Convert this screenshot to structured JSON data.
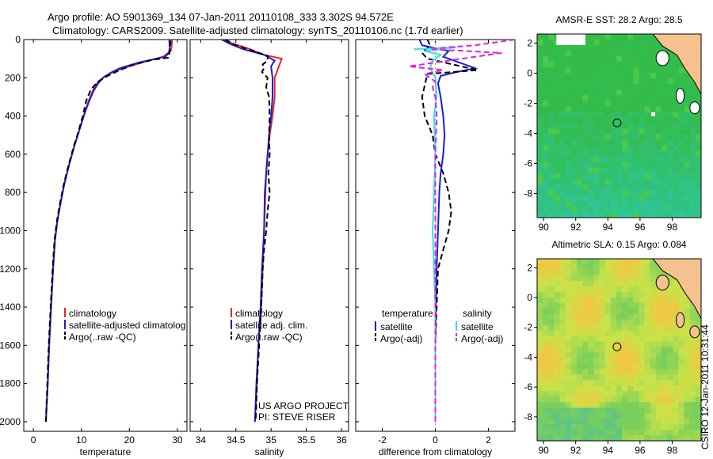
{
  "header": {
    "line1": "Argo profile: AO 5901369_134 07-Jan-2011 20110108_333 3.302S 94.572E",
    "line2": "Climatology: CARS2009. Satellite-adjusted climatology: synTS_20110106.nc (1.7d earlier)"
  },
  "side_label": "CSIRO 12-Jan-2011 10:31:44",
  "project_note": {
    "line1": "US ARGO PROJECT",
    "line2": "PI: STEVE RISER"
  },
  "colors": {
    "climatology": "#e8262a",
    "satellite": "#1c1cd6",
    "argo": "#000000",
    "sat_sal": "#38e0e0",
    "argo_sal": "#e020e0",
    "land": "#f5c18e"
  },
  "chart_data": [
    {
      "type": "line",
      "xlabel": "temperature",
      "ylabel": "",
      "xlim": [
        -2,
        32
      ],
      "ylim": [
        2050,
        0
      ],
      "xticks": [
        "0",
        "10",
        "20",
        "30"
      ],
      "yticks": [
        "0",
        "200",
        "400",
        "600",
        "800",
        "1000",
        "1200",
        "1400",
        "1600",
        "1800",
        "2000"
      ],
      "legend": [
        "climatology",
        "satellite-adjusted climatolog",
        "Argo(..raw -QC)"
      ],
      "series": [
        {
          "name": "climatology",
          "color": "red",
          "style": "solid",
          "points": [
            [
              28.9,
              0
            ],
            [
              28.8,
              40
            ],
            [
              28.6,
              60
            ],
            [
              27,
              90
            ],
            [
              24,
              110
            ],
            [
              20,
              140
            ],
            [
              17,
              165
            ],
            [
              15,
              190
            ],
            [
              13.5,
              220
            ],
            [
              12.5,
              260
            ],
            [
              11.5,
              320
            ],
            [
              10.5,
              400
            ],
            [
              9.5,
              480
            ],
            [
              8.5,
              560
            ],
            [
              7.5,
              650
            ],
            [
              6.5,
              750
            ],
            [
              5.7,
              850
            ],
            [
              5,
              950
            ],
            [
              4.5,
              1050
            ],
            [
              4.1,
              1200
            ],
            [
              3.7,
              1400
            ],
            [
              3.3,
              1600
            ],
            [
              3,
              1800
            ],
            [
              2.6,
              2000
            ]
          ]
        },
        {
          "name": "satellite-adjusted climatolog",
          "color": "blue",
          "style": "solid",
          "points": [
            [
              28.3,
              0
            ],
            [
              28.4,
              45
            ],
            [
              28.2,
              70
            ],
            [
              27.5,
              90
            ],
            [
              22,
              120
            ],
            [
              18,
              150
            ],
            [
              16,
              175
            ],
            [
              14.5,
              200
            ],
            [
              13.5,
              230
            ],
            [
              12.5,
              270
            ],
            [
              11.5,
              330
            ],
            [
              10.5,
              400
            ],
            [
              9.5,
              480
            ],
            [
              8.5,
              560
            ],
            [
              7.5,
              650
            ],
            [
              6.5,
              750
            ],
            [
              5.7,
              850
            ],
            [
              5,
              950
            ],
            [
              4.5,
              1050
            ],
            [
              4.1,
              1200
            ],
            [
              3.7,
              1400
            ],
            [
              3.3,
              1600
            ],
            [
              3,
              1800
            ],
            [
              2.6,
              2000
            ]
          ]
        },
        {
          "name": "Argo(..raw -QC)",
          "color": "black",
          "style": "dashed",
          "points": [
            [
              28.6,
              5
            ],
            [
              28.5,
              50
            ],
            [
              28.3,
              80
            ],
            [
              28.2,
              95
            ],
            [
              25,
              105
            ],
            [
              21,
              130
            ],
            [
              18,
              160
            ],
            [
              15.5,
              190
            ],
            [
              13.5,
              220
            ],
            [
              12,
              260
            ],
            [
              11,
              320
            ],
            [
              10.3,
              400
            ],
            [
              9.4,
              480
            ],
            [
              8.4,
              560
            ],
            [
              7.4,
              650
            ],
            [
              6.4,
              750
            ],
            [
              5.6,
              850
            ],
            [
              4.9,
              950
            ],
            [
              4.4,
              1050
            ],
            [
              4,
              1200
            ],
            [
              3.6,
              1400
            ],
            [
              3.2,
              1600
            ],
            [
              2.9,
              1800
            ],
            [
              2.6,
              2000
            ]
          ]
        }
      ]
    },
    {
      "type": "line",
      "xlabel": "salinity",
      "xlim": [
        33.85,
        36.1
      ],
      "ylim": [
        2050,
        0
      ],
      "xticks": [
        "34",
        "34.5",
        "35",
        "35.5",
        "36"
      ],
      "legend": [
        "climatology",
        "satellite adj. clim.",
        "Argo(..raw -QC)"
      ],
      "series": [
        {
          "name": "climatology",
          "color": "red",
          "style": "solid",
          "points": [
            [
              34.3,
              0
            ],
            [
              34.45,
              20
            ],
            [
              34.7,
              50
            ],
            [
              34.9,
              80
            ],
            [
              35.15,
              100
            ],
            [
              35.12,
              130
            ],
            [
              35.05,
              200
            ],
            [
              35.05,
              300
            ],
            [
              35.02,
              400
            ],
            [
              34.98,
              500
            ],
            [
              34.95,
              600
            ],
            [
              34.93,
              700
            ],
            [
              34.92,
              800
            ],
            [
              34.9,
              1000
            ],
            [
              34.88,
              1200
            ],
            [
              34.86,
              1400
            ],
            [
              34.82,
              1600
            ],
            [
              34.8,
              1800
            ],
            [
              34.77,
              2000
            ]
          ]
        },
        {
          "name": "satellite adj. clim.",
          "color": "blue",
          "style": "solid",
          "points": [
            [
              34.3,
              0
            ],
            [
              34.4,
              20
            ],
            [
              34.6,
              50
            ],
            [
              34.9,
              80
            ],
            [
              35.05,
              110
            ],
            [
              35,
              140
            ],
            [
              35.02,
              200
            ],
            [
              35.02,
              300
            ],
            [
              35,
              400
            ],
            [
              34.97,
              500
            ],
            [
              34.95,
              600
            ],
            [
              34.93,
              700
            ],
            [
              34.91,
              800
            ],
            [
              34.9,
              1000
            ],
            [
              34.87,
              1200
            ],
            [
              34.85,
              1400
            ],
            [
              34.82,
              1600
            ],
            [
              34.79,
              1800
            ],
            [
              34.77,
              2000
            ]
          ]
        },
        {
          "name": "Argo(..raw -QC)",
          "color": "black",
          "style": "dashed",
          "points": [
            [
              34.35,
              0
            ],
            [
              34.5,
              30
            ],
            [
              34.75,
              60
            ],
            [
              34.95,
              85
            ],
            [
              34.95,
              110
            ],
            [
              34.88,
              130
            ],
            [
              34.9,
              150
            ],
            [
              34.87,
              170
            ],
            [
              34.95,
              200
            ],
            [
              34.93,
              250
            ],
            [
              34.97,
              300
            ],
            [
              34.98,
              400
            ],
            [
              34.97,
              500
            ],
            [
              34.98,
              600
            ],
            [
              34.96,
              700
            ],
            [
              34.98,
              800
            ],
            [
              34.95,
              900
            ],
            [
              34.93,
              1000
            ],
            [
              34.9,
              1100
            ],
            [
              34.88,
              1200
            ],
            [
              34.86,
              1400
            ],
            [
              34.83,
              1600
            ],
            [
              34.8,
              1800
            ],
            [
              34.78,
              2000
            ]
          ]
        }
      ]
    },
    {
      "type": "line",
      "xlabel": "difference from climatology",
      "xlim": [
        -3,
        3
      ],
      "ylim": [
        2050,
        0
      ],
      "xticks": [
        "-2",
        "0",
        "2"
      ],
      "legend_groups": [
        {
          "title": "temperature",
          "entries": [
            "satellite",
            "Argo(-adj)"
          ]
        },
        {
          "title": "salinity",
          "entries": [
            "satellite",
            "Argo(-adj)"
          ]
        }
      ],
      "series": [
        {
          "name": "temperature satellite",
          "color": "blue",
          "style": "solid",
          "points": [
            [
              -0.6,
              0
            ],
            [
              -0.5,
              30
            ],
            [
              0.5,
              60
            ],
            [
              0.3,
              90
            ],
            [
              1.5,
              150
            ],
            [
              0.8,
              170
            ],
            [
              0.2,
              190
            ],
            [
              0.1,
              230
            ],
            [
              0.2,
              300
            ],
            [
              0.3,
              400
            ],
            [
              0.35,
              500
            ],
            [
              0.3,
              600
            ],
            [
              0.2,
              700
            ],
            [
              0.15,
              800
            ],
            [
              0.1,
              1000
            ],
            [
              0.05,
              1200
            ],
            [
              0.02,
              1400
            ],
            [
              0,
              1600
            ],
            [
              0,
              1800
            ],
            [
              0,
              2000
            ]
          ]
        },
        {
          "name": "temperature Argo(-adj)",
          "color": "black",
          "style": "dashed",
          "points": [
            [
              -0.3,
              0
            ],
            [
              -0.2,
              30
            ],
            [
              -0.5,
              70
            ],
            [
              -0.3,
              100
            ],
            [
              1.6,
              160
            ],
            [
              -0.3,
              180
            ],
            [
              -0.4,
              240
            ],
            [
              -0.5,
              300
            ],
            [
              -0.4,
              400
            ],
            [
              -0.1,
              500
            ],
            [
              0,
              600
            ],
            [
              0.3,
              700
            ],
            [
              0.5,
              800
            ],
            [
              0.6,
              900
            ],
            [
              0.5,
              1000
            ],
            [
              0.3,
              1100
            ],
            [
              0.1,
              1200
            ],
            [
              0.05,
              1400
            ],
            [
              0,
              1600
            ],
            [
              0,
              1800
            ],
            [
              0,
              2000
            ]
          ]
        },
        {
          "name": "salinity satellite",
          "color": "cyan",
          "style": "solid",
          "points": [
            [
              -0.8,
              50
            ],
            [
              0.8,
              40
            ],
            [
              -0.4,
              60
            ],
            [
              0.2,
              80
            ],
            [
              -0.1,
              110
            ],
            [
              -0.2,
              150
            ],
            [
              0,
              200
            ],
            [
              0.05,
              300
            ],
            [
              -0.05,
              400
            ],
            [
              0,
              600
            ],
            [
              -0.05,
              800
            ],
            [
              -0.1,
              1000
            ],
            [
              -0.05,
              1200
            ],
            [
              0,
              1400
            ],
            [
              0,
              1600
            ],
            [
              0,
              1800
            ],
            [
              0,
              2000
            ]
          ]
        },
        {
          "name": "salinity Argo(-adj)",
          "color": "magenta",
          "style": "dashed",
          "points": [
            [
              3,
              0
            ],
            [
              1.5,
              30
            ],
            [
              0.5,
              40
            ],
            [
              -0.2,
              50
            ],
            [
              0.5,
              55
            ],
            [
              2.5,
              70
            ],
            [
              -1,
              140
            ],
            [
              0.3,
              160
            ],
            [
              -0.4,
              180
            ],
            [
              0,
              220
            ],
            [
              -0.1,
              250
            ],
            [
              0,
              300
            ],
            [
              0.05,
              400
            ],
            [
              0,
              600
            ],
            [
              0,
              800
            ],
            [
              0,
              1000
            ],
            [
              0,
              1200
            ],
            [
              0,
              1600
            ],
            [
              0,
              2000
            ]
          ]
        }
      ]
    },
    {
      "type": "heatmap",
      "title": "AMSR-E SST: 28.2 Argo: 28.5",
      "xlim": [
        89.6,
        99.8
      ],
      "ylim": [
        -9.6,
        2.6
      ],
      "xticks": [
        "90",
        "92",
        "94",
        "96",
        "98"
      ],
      "yticks": [
        "2",
        "0",
        "-2",
        "-4",
        "-6",
        "-8"
      ],
      "float_marker": [
        94.572,
        -3.302
      ]
    },
    {
      "type": "heatmap",
      "title": "Altimetric SLA: 0.15 Argo: 0.084",
      "xlim": [
        89.6,
        99.8
      ],
      "ylim": [
        -9.6,
        2.6
      ],
      "xticks": [
        "90",
        "92",
        "94",
        "96",
        "98"
      ],
      "yticks": [
        "2",
        "0",
        "-2",
        "-4",
        "-6",
        "-8"
      ],
      "float_marker": [
        94.572,
        -3.302
      ]
    }
  ]
}
